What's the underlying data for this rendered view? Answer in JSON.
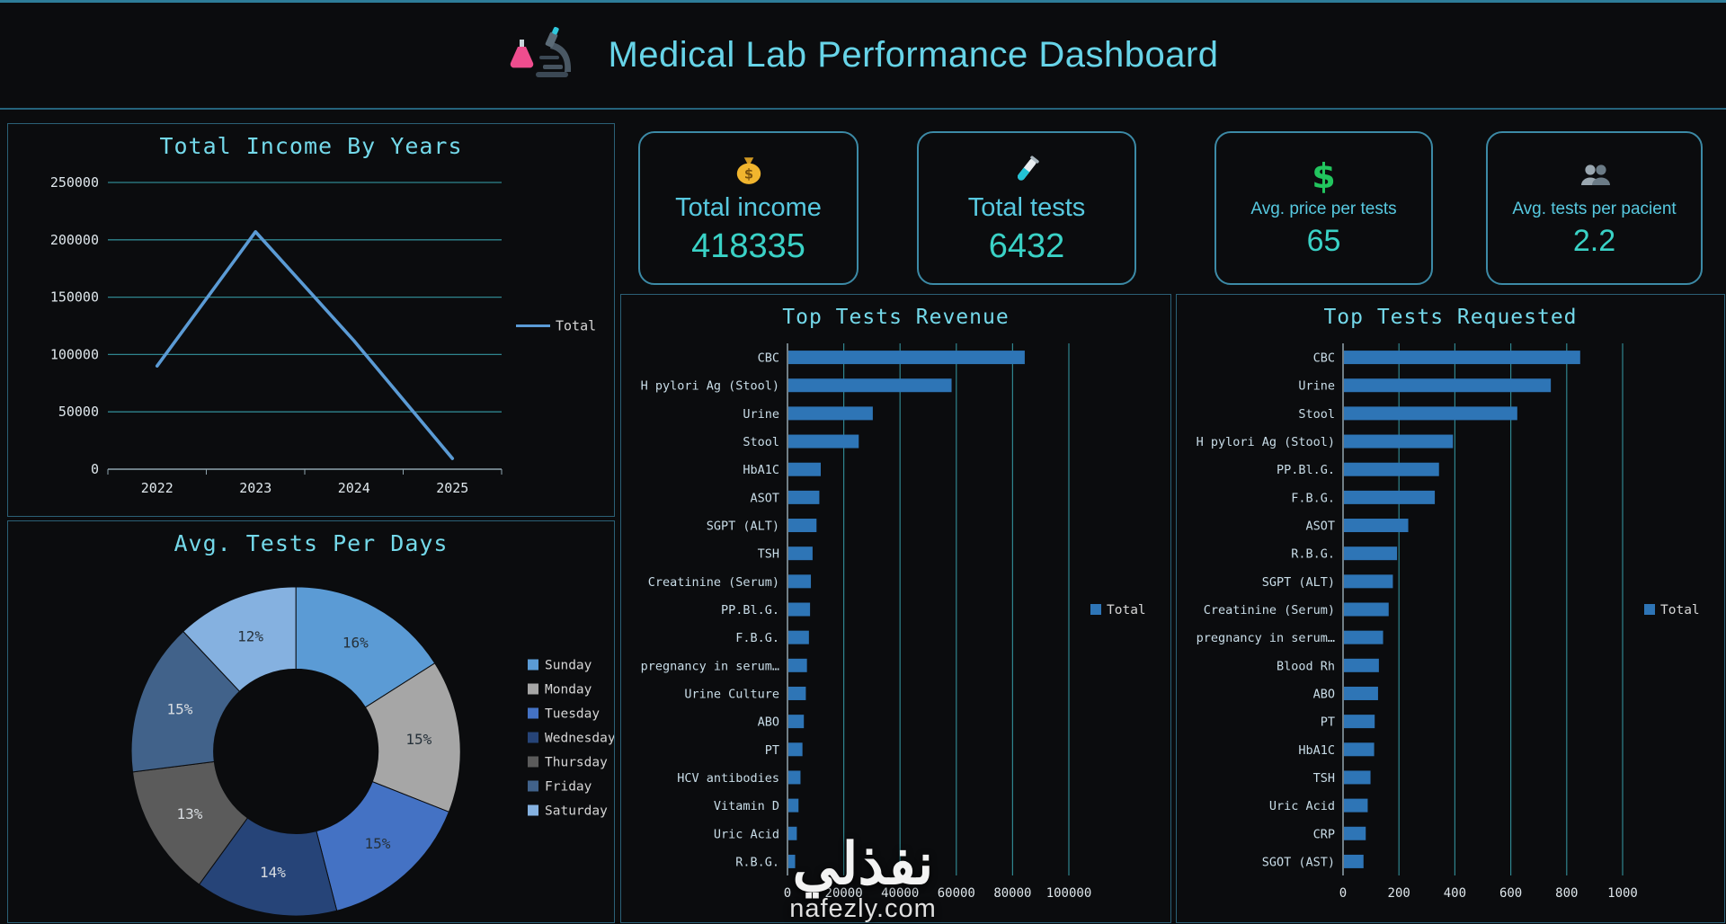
{
  "accent": {
    "background": "#0b0c0e",
    "panel_border": "#2b6076",
    "card_border": "#3c8aa6",
    "title_cyan": "#74d9ea",
    "header_cyan": "#67d4e8",
    "kpi_label": "#57c9e0",
    "kpi_value": "#3ad2c6",
    "grid_teal": "#2f858e",
    "bar_blue": "#2e75b6",
    "line_blue": "#5b9bd5",
    "axis_text": "#dfe7ec",
    "category_text": "#c9dde8"
  },
  "header": {
    "title": "Medical Lab Performance Dashboard",
    "icon": "microscope-lab-icon"
  },
  "kpis": [
    {
      "icon": "money-bag-icon",
      "label": "Total income",
      "value": "418335"
    },
    {
      "icon": "test-tube-icon",
      "label": "Total tests",
      "value": "6432"
    },
    {
      "icon": "dollar-icon",
      "label": "Avg. price per tests",
      "value": "65"
    },
    {
      "icon": "people-icon",
      "label": "Avg. tests per pacient",
      "value": "2.2"
    }
  ],
  "watermark": {
    "arabic": "نفذلي",
    "site": "nafezly.com"
  },
  "chart_data": [
    {
      "id": "income_by_years",
      "type": "line",
      "title": "Total Income By Years",
      "x": [
        "2022",
        "2023",
        "2024",
        "2025"
      ],
      "series": [
        {
          "name": "Total",
          "values": [
            90000,
            207000,
            112000,
            9335
          ]
        }
      ],
      "ylim": [
        0,
        250000
      ],
      "yticks": [
        0,
        50000,
        100000,
        150000,
        200000,
        250000
      ],
      "grid": true,
      "legend_position": "right"
    },
    {
      "id": "avg_tests_per_days",
      "type": "pie",
      "doughnut": true,
      "title": "Avg. Tests Per Days",
      "categories": [
        "Sunday",
        "Monday",
        "Tuesday",
        "Wednesday",
        "Thursday",
        "Friday",
        "Saturday"
      ],
      "values": [
        16,
        15,
        15,
        14,
        13,
        15,
        12
      ],
      "labels": [
        "16%",
        "15%",
        "15%",
        "14%",
        "13%",
        "15%",
        "12%"
      ],
      "colors": [
        "#5b9bd5",
        "#a6a6a6",
        "#4472c4",
        "#264478",
        "#5b5b5b",
        "#41628a",
        "#85b1e0"
      ],
      "legend_position": "right"
    },
    {
      "id": "top_tests_revenue",
      "type": "bar",
      "orientation": "horizontal",
      "title": "Top Tests Revenue",
      "series_name": "Total",
      "bar_color": "#2e75b6",
      "categories": [
        "CBC",
        "H pylori Ag (Stool)",
        "Urine",
        "Stool",
        "HbA1C",
        "ASOT",
        "SGPT (ALT)",
        "TSH",
        "Creatinine (Serum)",
        "PP.Bl.G.",
        "F.B.G.",
        "pregnancy in serum…",
        "Urine Culture",
        "ABO",
        "PT",
        "HCV antibodies",
        "Vitamin D",
        "Uric Acid",
        "R.B.G."
      ],
      "values": [
        84000,
        58000,
        30000,
        25000,
        11500,
        11000,
        10000,
        8600,
        8000,
        7700,
        7300,
        6600,
        6200,
        5500,
        5000,
        4300,
        3600,
        3000,
        2400
      ],
      "xlim": [
        0,
        100000
      ],
      "xticks": [
        0,
        20000,
        40000,
        60000,
        80000,
        100000
      ],
      "legend_position": "right"
    },
    {
      "id": "top_tests_requested",
      "type": "bar",
      "orientation": "horizontal",
      "title": "Top Tests Requested",
      "series_name": "Total",
      "bar_color": "#2e75b6",
      "categories": [
        "CBC",
        "Urine",
        "Stool",
        "H pylori Ag (Stool)",
        "PP.Bl.G.",
        "F.B.G.",
        "ASOT",
        "R.B.G.",
        "SGPT (ALT)",
        "Creatinine (Serum)",
        "pregnancy in serum…",
        "Blood Rh",
        "ABO",
        "PT",
        "HbA1C",
        "TSH",
        "Uric Acid",
        "CRP",
        "SGOT (AST)"
      ],
      "values": [
        845,
        740,
        620,
        390,
        340,
        325,
        230,
        190,
        175,
        160,
        140,
        125,
        122,
        110,
        108,
        95,
        85,
        78,
        70
      ],
      "xlim": [
        0,
        1000
      ],
      "xticks": [
        0,
        200,
        400,
        600,
        800,
        1000
      ],
      "legend_position": "right"
    }
  ]
}
